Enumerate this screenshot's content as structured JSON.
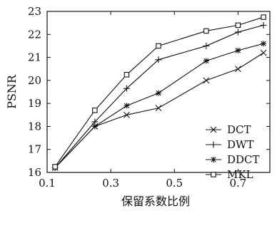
{
  "chart_data": {
    "type": "line",
    "title": "",
    "xlabel": "保留系数比例",
    "ylabel": "PSNR",
    "xlim": [
      0.1,
      0.8
    ],
    "ylim": [
      16,
      23
    ],
    "xticks": [
      0.1,
      0.3,
      0.5,
      0.7
    ],
    "yticks": [
      16,
      17,
      18,
      19,
      20,
      21,
      22,
      23
    ],
    "grid": false,
    "legend_position": "bottom-right",
    "series": [
      {
        "name": "DCT",
        "marker": "x",
        "x": [
          0.125,
          0.25,
          0.35,
          0.45,
          0.6,
          0.7,
          0.78
        ],
        "y": [
          16.2,
          18.0,
          18.5,
          18.8,
          20.0,
          20.5,
          21.2
        ]
      },
      {
        "name": "DWT",
        "marker": "plus",
        "x": [
          0.125,
          0.25,
          0.35,
          0.45,
          0.6,
          0.7,
          0.78
        ],
        "y": [
          16.2,
          18.2,
          19.65,
          20.9,
          21.5,
          22.1,
          22.4
        ]
      },
      {
        "name": "DDCT",
        "marker": "asterisk",
        "x": [
          0.125,
          0.25,
          0.35,
          0.45,
          0.6,
          0.7,
          0.78
        ],
        "y": [
          16.2,
          18.0,
          18.9,
          19.45,
          20.85,
          21.3,
          21.6
        ]
      },
      {
        "name": "MKL",
        "marker": "square",
        "x": [
          0.125,
          0.25,
          0.35,
          0.45,
          0.6,
          0.7,
          0.78
        ],
        "y": [
          16.25,
          18.7,
          20.25,
          21.5,
          22.15,
          22.4,
          22.75
        ]
      }
    ]
  }
}
